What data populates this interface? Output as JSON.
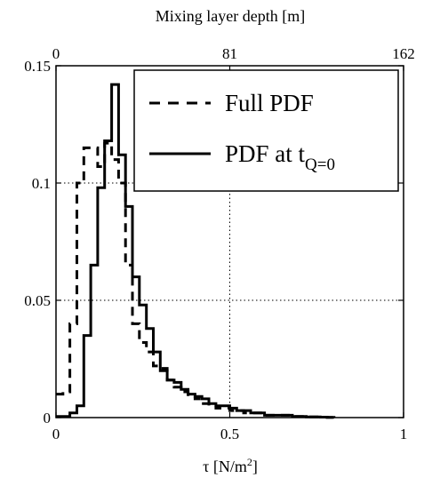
{
  "chart_data": {
    "type": "line",
    "title": "",
    "top_axis": {
      "label": "Mixing layer depth [m]",
      "ticks": [
        "0",
        "81",
        "162"
      ],
      "tick_values": [
        0,
        0.5,
        1
      ]
    },
    "x_axis": {
      "label_main": "τ [N/m",
      "label_sup": "2",
      "label_end": "]",
      "ticks": [
        "0",
        "0.5",
        "1"
      ],
      "tick_values": [
        0,
        0.5,
        1
      ],
      "xlim": [
        0,
        1
      ]
    },
    "y_axis": {
      "label": "",
      "ticks": [
        "0",
        "0.05",
        "0.1",
        "0.15"
      ],
      "tick_values": [
        0,
        0.05,
        0.1,
        0.15
      ],
      "ylim": [
        0,
        0.15
      ]
    },
    "grid": true,
    "legend": {
      "position": "top-right",
      "entries": [
        {
          "label": "Full PDF",
          "sub": "",
          "style": "dashed"
        },
        {
          "label": "PDF at t",
          "sub": "Q=0",
          "style": "solid"
        }
      ]
    },
    "series": [
      {
        "name": "Full PDF",
        "style": "dashed",
        "color": "#000000",
        "x": [
          0,
          0.02,
          0.04,
          0.06,
          0.08,
          0.1,
          0.12,
          0.14,
          0.16,
          0.18,
          0.2,
          0.22,
          0.24,
          0.26,
          0.28,
          0.3,
          0.32,
          0.34,
          0.36,
          0.38,
          0.4,
          0.42,
          0.44,
          0.46,
          0.48,
          0.5,
          0.52,
          0.54,
          0.56,
          0.58,
          0.6,
          0.62,
          0.64,
          0.66,
          0.68,
          0.7,
          0.72,
          0.74,
          0.76,
          0.78,
          0.8
        ],
        "y": [
          0.01,
          0.011,
          0.04,
          0.1,
          0.115,
          0.115,
          0.107,
          0.117,
          0.11,
          0.1,
          0.065,
          0.04,
          0.032,
          0.028,
          0.022,
          0.021,
          0.016,
          0.013,
          0.011,
          0.009,
          0.008,
          0.006,
          0.005,
          0.004,
          0.004,
          0.003,
          0.003,
          0.002,
          0.002,
          0.002,
          0.001,
          0.001,
          0.001,
          0.001,
          0.0005,
          0.0005,
          0.0003,
          0.0003,
          0.0002,
          0.0001,
          0
        ]
      },
      {
        "name": "PDF at t_{Q=0}",
        "style": "solid",
        "color": "#000000",
        "x": [
          0,
          0.02,
          0.04,
          0.06,
          0.08,
          0.1,
          0.12,
          0.14,
          0.16,
          0.18,
          0.2,
          0.22,
          0.24,
          0.26,
          0.28,
          0.3,
          0.32,
          0.34,
          0.36,
          0.38,
          0.4,
          0.42,
          0.44,
          0.46,
          0.48,
          0.5,
          0.52,
          0.54,
          0.56,
          0.58,
          0.6,
          0.62,
          0.64,
          0.66,
          0.68,
          0.7,
          0.72,
          0.74,
          0.76,
          0.78,
          0.8
        ],
        "y": [
          0.0005,
          0.0005,
          0.002,
          0.005,
          0.035,
          0.065,
          0.098,
          0.118,
          0.142,
          0.112,
          0.09,
          0.06,
          0.048,
          0.038,
          0.028,
          0.02,
          0.016,
          0.015,
          0.012,
          0.01,
          0.009,
          0.008,
          0.006,
          0.005,
          0.005,
          0.004,
          0.003,
          0.003,
          0.002,
          0.002,
          0.001,
          0.001,
          0.001,
          0.001,
          0.0005,
          0.0005,
          0.0003,
          0.0003,
          0.0002,
          0.0001,
          0
        ]
      }
    ]
  }
}
